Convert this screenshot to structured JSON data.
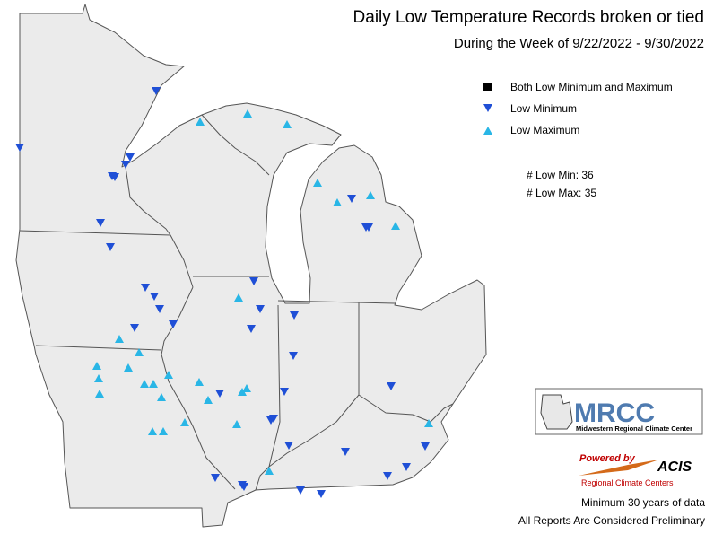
{
  "title": "Daily Low Temperature Records broken or tied",
  "subtitle": "During the Week of 9/22/2022 - 9/30/2022",
  "legend": [
    "Both Low Minimum and Maximum",
    "Low Minimum",
    "Low Maximum"
  ],
  "counts": [
    "# Low Min: 36",
    "# Low Max: 35"
  ],
  "logos": {
    "mrcc": "MRCC",
    "mrcc_name": "Midwestern Regional Climate Center",
    "powered": "Powered by",
    "acis": "ACIS",
    "rcc": "Regional Climate Centers"
  },
  "footer": [
    "Minimum 30 years of data",
    "All Reports Are Considered Preliminary"
  ]
}
